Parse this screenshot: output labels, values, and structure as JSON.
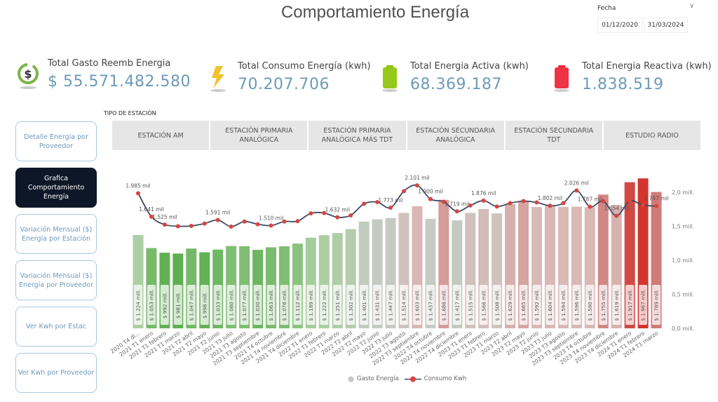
{
  "header": {
    "title": "Comportamiento Energía"
  },
  "date_slicer": {
    "label": "Fecha",
    "start": "01/12/2020",
    "end": "31/03/2024"
  },
  "kpis": [
    {
      "label": "Total Gasto Reemb Energia",
      "value": "$ 55.571.482.580",
      "icon": "dollar-cycle-icon"
    },
    {
      "label": "Total Consumo Energía (kwh)",
      "value": "70.207.706",
      "icon": "lightning-icon"
    },
    {
      "label": "Total Energia Activa (kwh)",
      "value": "68.369.187",
      "icon": "green-battery-icon"
    },
    {
      "label": "Total Energia Reactiva (kwh)",
      "value": "1.838.519",
      "icon": "red-battery-icon"
    }
  ],
  "station_filter": {
    "label": "TIPO DE ESTACIÓN",
    "options": [
      "ESTACIÓN AM",
      "ESTACIÓN PRIMARIA ANALÓGICA",
      "ESTACIÓN PRIMARIA ANALÓGICA MÁS TDT",
      "ESTACIÓN SECUNDARIA ANALÓGICA",
      "ESTACIÓN SECUNDARIA TDT",
      "ESTUDIO RADIO"
    ]
  },
  "nav": [
    {
      "label": "Detalle Energía por Proveedor",
      "active": false
    },
    {
      "label": "Grafica Comportamiento Energía",
      "active": true
    },
    {
      "label": "Variación Mensual ($) Energía por Estación",
      "active": false
    },
    {
      "label": "Variación Mensual ($) Energía por Proveedor",
      "active": false
    },
    {
      "label": "Ver Kwh por Estac",
      "active": false
    },
    {
      "label": "Ver Kwh por Proveedor",
      "active": false
    }
  ],
  "colors": {
    "accent": "#6e9ab9",
    "nav_active": "#0e1727",
    "line": "#3b4a63",
    "marker": "#d64541",
    "bar_low": "#5daf50",
    "bar_mid": "#c9ccc5",
    "bar_high": "#d3352f"
  },
  "chart_data": {
    "type": "bar+line",
    "categories": [
      "2020 T4 di...",
      "2021 T1 enero",
      "2021 T1 febrero",
      "2021 T1 marzo",
      "2021 T2 abril",
      "2021 T2 mayo",
      "2021 T2 junio",
      "2021 T3 julio",
      "2021 T3 agosto",
      "2021 T3 septiembre",
      "2021 T4 octubre",
      "2021 T4 noviembre",
      "2021 T4 diciembre",
      "2022 T1 enero",
      "2022 T1 febrero",
      "2022 T1 marzo",
      "2022 T2 abril",
      "2022 T2 mayo",
      "2022 T2 junio",
      "2022 T3 julio",
      "2022 T3 agosto",
      "2022 T3 septiembre",
      "2022 T4 octubre",
      "2022 T4 noviembre",
      "2022 T4 diciembre",
      "2023 T1 enero",
      "2023 T1 febrero",
      "2023 T1 marzo",
      "2023 T2 abril",
      "2023 T2 mayo",
      "2023 T2 junio",
      "2023 T3 julio",
      "2023 T3 agosto",
      "2023 T3 septiembre",
      "2023 T4 octubre",
      "2023 T4 noviembre",
      "2023 T4 diciembre",
      "2024 T1 enero",
      "2024 T1 febrero",
      "2024 T1 marzo"
    ],
    "bar_series": {
      "name": "Gasto Energía",
      "unit": "mill.",
      "values": [
        1224,
        1053,
        992,
        981,
        1047,
        998,
        1033,
        1080,
        1077,
        1030,
        1063,
        1076,
        1112,
        1189,
        1222,
        1251,
        1302,
        1401,
        1431,
        1447,
        1514,
        1603,
        1437,
        1686,
        1417,
        1515,
        1566,
        1508,
        1629,
        1665,
        1592,
        1604,
        1594,
        1596,
        1590,
        1755,
        1619,
        1917,
        1967,
        1789
      ],
      "labels": [
        "$ 1.224 mill.",
        "$ 1.053 mill.",
        "$ 992 mill.",
        "$ 981 mill.",
        "$ 1.047 mill.",
        "$ 998 mill.",
        "$ 1.033 mill.",
        "$ 1.080 mill.",
        "$ 1.077 mill.",
        "$ 1.030 mill.",
        "$ 1.063 mill.",
        "$ 1.076 mill.",
        "$ 1.112 mill.",
        "$ 1.189 mill.",
        "$ 1.222 mill.",
        "$ 1.251 mill.",
        "$ 1.302 mill.",
        "$ 1.401 mill.",
        "$ 1.431 mill.",
        "$ 1.447 mill.",
        "$ 1.514 mill.",
        "$ 1.603 mill.",
        "$ 1.437 mill.",
        "$ 1.686 mill.",
        "$ 1.417 mill.",
        "$ 1.515 mill.",
        "$ 1.566 mill.",
        "$ 1.508 mill.",
        "$ 1.629 mill.",
        "$ 1.665 mill.",
        "$ 1.592 mill.",
        "$ 1.604 mill.",
        "$ 1.594 mill.",
        "$ 1.596 mill.",
        "$ 1.590 mill.",
        "$ 1.755 mill.",
        "$ 1.619 mill.",
        "$ 1.917 mill.",
        "$ 1.967 mill.",
        "$ 1.789 mill."
      ]
    },
    "line_series": {
      "name": "Consumo Kwh",
      "unit": "mil",
      "values": [
        1985,
        1641,
        1525,
        1500,
        1505,
        1540,
        1591,
        1495,
        1570,
        1530,
        1510,
        1570,
        1575,
        1690,
        1695,
        1632,
        1660,
        1830,
        1855,
        1773,
        2016,
        2101,
        1900,
        1860,
        1719,
        1805,
        1876,
        1790,
        1840,
        1870,
        1850,
        1802,
        1840,
        2026,
        1787,
        1870,
        1654,
        1870,
        1810,
        1797
      ],
      "labels": [
        "1.985 mil",
        "1.641 mil",
        "1.525 mil",
        null,
        null,
        null,
        "1.591 mil",
        null,
        null,
        null,
        "1.510 mil",
        null,
        null,
        null,
        null,
        "1.632 mil",
        null,
        null,
        null,
        "1.773 mil",
        null,
        "2.101 mil",
        "1.900 mil",
        null,
        "1.719 mil",
        null,
        "1.876 mil",
        null,
        null,
        null,
        null,
        "1.802 mil",
        null,
        "2.026 mil",
        "1.787 mil",
        null,
        "1.654 mil",
        null,
        null,
        "1.797 mil"
      ]
    },
    "y_axis": {
      "min": 0,
      "max": 2000000,
      "ticks": [
        0,
        500000,
        1000000,
        1500000,
        2000000
      ],
      "tick_labels": [
        "0,0 mill.",
        "0,5 mill.",
        "1,0 mill.",
        "1,5 mill.",
        "2,0 mill."
      ]
    },
    "legend": {
      "position": "bottom",
      "items": [
        "Gasto Energía",
        "Consumo Kwh"
      ]
    },
    "grid": false
  }
}
